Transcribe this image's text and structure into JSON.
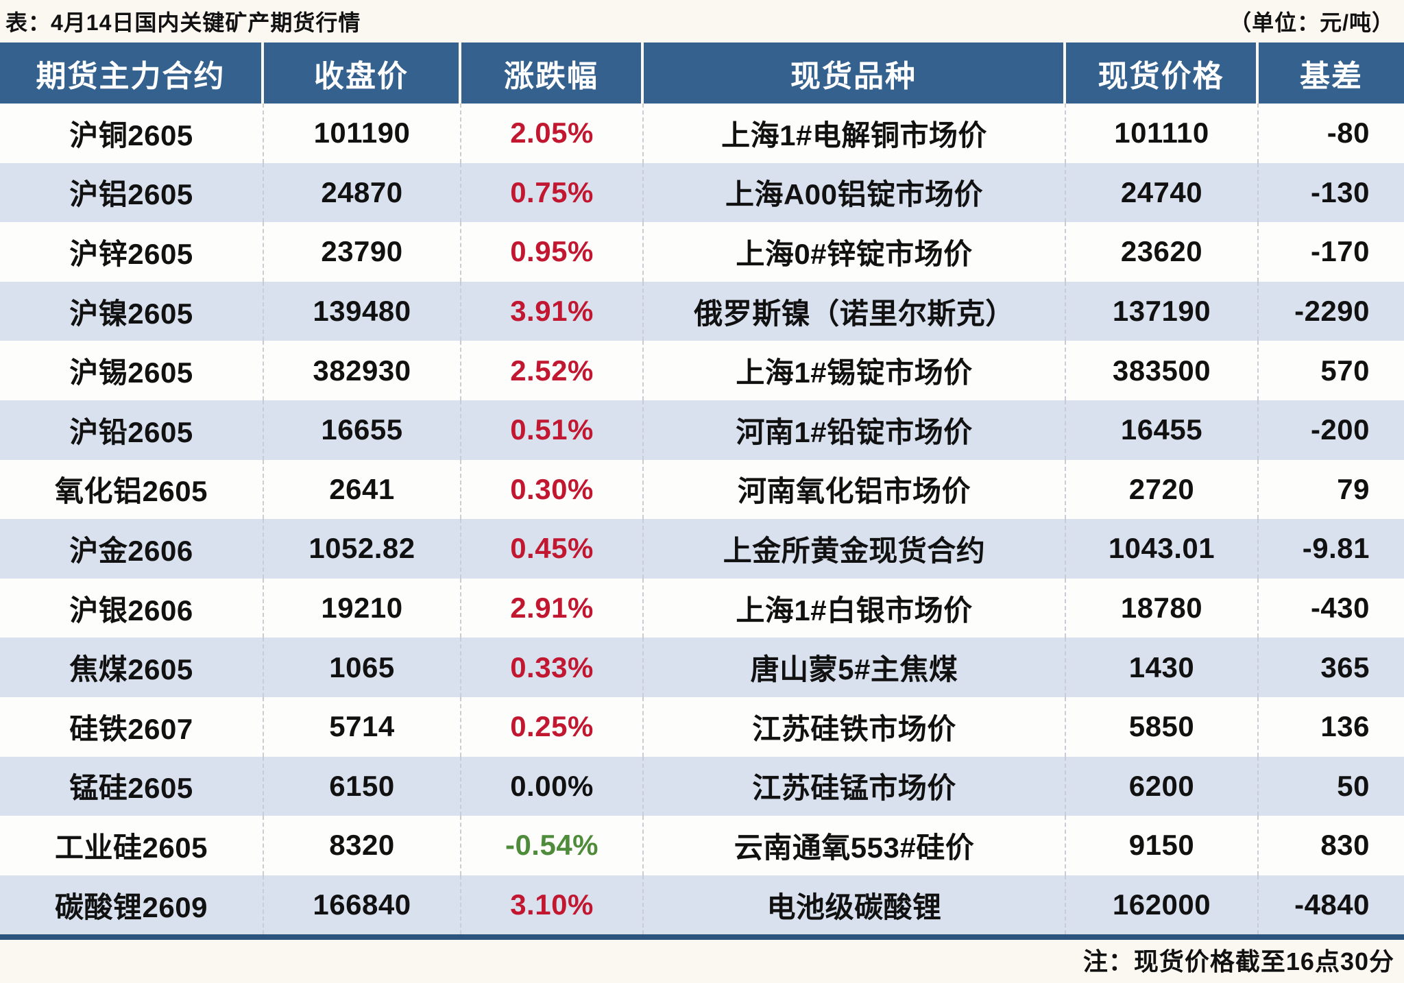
{
  "title": "表：4月14日国内关键矿产期货行情",
  "unit_label": "（单位：元/吨）",
  "footnote": "注：现货价格截至16点30分",
  "colors": {
    "header_bg": "#35618E",
    "row_bg": "#FDFDFB",
    "row_alt_bg": "#D9E1EE",
    "page_bg": "#FBF8F2",
    "up_red": "#C11730",
    "down_green": "#4E8B3B",
    "neutral_text": "#111111",
    "bottom_rule": "#2A547D"
  },
  "chart_data": {
    "type": "table",
    "title": "表：4月14日国内关键矿产期货行情",
    "unit": "元/吨",
    "columns": [
      "期货主力合约",
      "收盘价",
      "涨跌幅",
      "现货品种",
      "现货价格",
      "基差"
    ],
    "column_ids": [
      "contract",
      "close-price",
      "change-pct",
      "spot-variety",
      "spot-price",
      "basis"
    ],
    "cell_names": [
      "contract-cell",
      "close-price-cell",
      "change-pct-cell",
      "spot-variety-cell",
      "spot-price-cell",
      "basis-cell"
    ],
    "rows": [
      [
        "沪铜2605",
        "101190",
        "2.05%",
        "上海1#电解铜市场价",
        "101110",
        "-80"
      ],
      [
        "沪铝2605",
        "24870",
        "0.75%",
        "上海A00铝锭市场价",
        "24740",
        "-130"
      ],
      [
        "沪锌2605",
        "23790",
        "0.95%",
        "上海0#锌锭市场价",
        "23620",
        "-170"
      ],
      [
        "沪镍2605",
        "139480",
        "3.91%",
        "俄罗斯镍（诺里尔斯克）",
        "137190",
        "-2290"
      ],
      [
        "沪锡2605",
        "382930",
        "2.52%",
        "上海1#锡锭市场价",
        "383500",
        "570"
      ],
      [
        "沪铅2605",
        "16655",
        "0.51%",
        "河南1#铅锭市场价",
        "16455",
        "-200"
      ],
      [
        "氧化铝2605",
        "2641",
        "0.30%",
        "河南氧化铝市场价",
        "2720",
        "79"
      ],
      [
        "沪金2606",
        "1052.82",
        "0.45%",
        "上金所黄金现货合约",
        "1043.01",
        "-9.81"
      ],
      [
        "沪银2606",
        "19210",
        "2.91%",
        "上海1#白银市场价",
        "18780",
        "-430"
      ],
      [
        "焦煤2605",
        "1065",
        "0.33%",
        "唐山蒙5#主焦煤",
        "1430",
        "365"
      ],
      [
        "硅铁2607",
        "5714",
        "0.25%",
        "江苏硅铁市场价",
        "5850",
        "136"
      ],
      [
        "锰硅2605",
        "6150",
        "0.00%",
        "江苏硅锰市场价",
        "6200",
        "50"
      ],
      [
        "工业硅2605",
        "8320",
        "-0.54%",
        "云南通氧553#硅价",
        "9150",
        "830"
      ],
      [
        "碳酸锂2609",
        "166840",
        "3.10%",
        "电池级碳酸锂",
        "162000",
        "-4840"
      ]
    ]
  }
}
